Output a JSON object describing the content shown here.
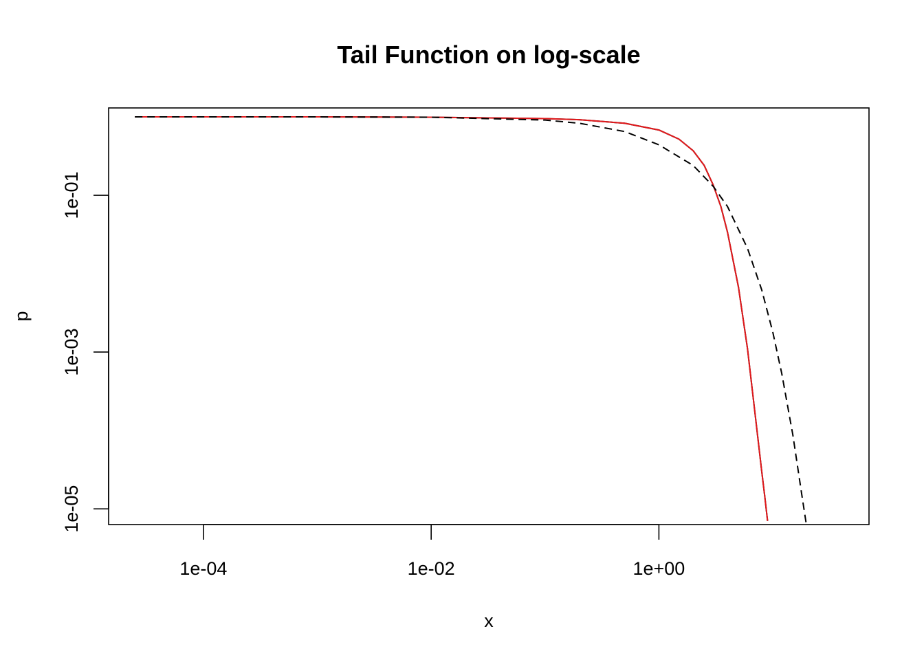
{
  "chart_data": {
    "type": "line",
    "title": "Tail Function on log-scale",
    "xlabel": "x",
    "ylabel": "p",
    "x_scale": "log",
    "y_scale": "log",
    "xlim": [
      1.47e-05,
      70
    ],
    "ylim": [
      6.3e-06,
      1.3
    ],
    "x_ticks": [
      {
        "value": 0.0001,
        "label": "1e-04"
      },
      {
        "value": 0.01,
        "label": "1e-02"
      },
      {
        "value": 1,
        "label": "1e+00"
      }
    ],
    "y_ticks": [
      {
        "value": 1e-05,
        "label": "1e-05"
      },
      {
        "value": 0.001,
        "label": "1e-03"
      },
      {
        "value": 0.1,
        "label": "1e-01"
      }
    ],
    "grid": false,
    "legend": "none",
    "series": [
      {
        "color": "#000000",
        "dash": "solid",
        "points": [
          [
            2.5e-05,
            0.9999
          ],
          [
            0.0001,
            0.9999
          ],
          [
            0.001,
            0.999
          ],
          [
            0.01,
            0.99
          ],
          [
            0.1,
            0.95
          ],
          [
            0.2,
            0.92
          ],
          [
            0.5,
            0.83
          ],
          [
            1.0,
            0.68
          ],
          [
            1.5,
            0.52
          ],
          [
            2.0,
            0.37
          ],
          [
            2.5,
            0.24
          ],
          [
            3.0,
            0.135
          ],
          [
            3.5,
            0.072
          ],
          [
            4.0,
            0.034
          ],
          [
            5.0,
            0.0067
          ],
          [
            6.0,
            0.0011
          ],
          [
            7.0,
            0.00016
          ],
          [
            8.0,
            3e-05
          ],
          [
            8.5,
            1.45e-05
          ],
          [
            9.0,
            7e-06
          ]
        ]
      },
      {
        "color": "#e3191c",
        "dash": "solid",
        "points": [
          [
            2.5e-05,
            0.9999
          ],
          [
            0.0001,
            0.9999
          ],
          [
            0.001,
            0.999
          ],
          [
            0.01,
            0.99
          ],
          [
            0.1,
            0.95
          ],
          [
            0.2,
            0.92
          ],
          [
            0.5,
            0.83
          ],
          [
            1.0,
            0.68
          ],
          [
            1.5,
            0.52
          ],
          [
            2.0,
            0.37
          ],
          [
            2.5,
            0.24
          ],
          [
            3.0,
            0.135
          ],
          [
            3.5,
            0.072
          ],
          [
            4.0,
            0.034
          ],
          [
            5.0,
            0.0067
          ],
          [
            6.0,
            0.0011
          ],
          [
            7.0,
            0.00016
          ],
          [
            8.0,
            3e-05
          ],
          [
            8.5,
            1.45e-05
          ],
          [
            9.0,
            7e-06
          ]
        ]
      },
      {
        "color": "#000000",
        "dash": "dashed",
        "points": [
          [
            2.5e-05,
            0.9999
          ],
          [
            0.0001,
            0.9999
          ],
          [
            0.001,
            0.999
          ],
          [
            0.01,
            0.99
          ],
          [
            0.1,
            0.91
          ],
          [
            0.2,
            0.83
          ],
          [
            0.5,
            0.65
          ],
          [
            1.0,
            0.44
          ],
          [
            2.0,
            0.24
          ],
          [
            3.0,
            0.13
          ],
          [
            4.0,
            0.072
          ],
          [
            6.0,
            0.021
          ],
          [
            8.0,
            0.0062
          ],
          [
            10.0,
            0.0018
          ],
          [
            12.0,
            0.00053
          ],
          [
            15.0,
            8.8e-05
          ],
          [
            18.0,
            1.5e-05
          ],
          [
            20.0,
            5.5e-06
          ]
        ]
      }
    ]
  }
}
